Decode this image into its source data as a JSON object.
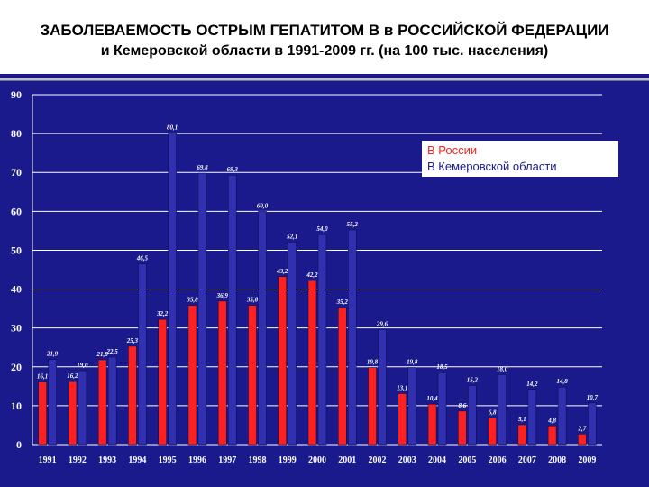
{
  "title": {
    "line1": "ЗАБОЛЕВАЕМОСТЬ ОСТРЫМ ГЕПАТИТОМ В в РОССИЙСКОЙ ФЕДЕРАЦИИ",
    "line2": "и Кемеровской области в 1991-2009 гг. (на 100 тыс. населения)"
  },
  "colors": {
    "plot_background": "#1a1a8c",
    "russia": "#ff2020",
    "kemerovo": "#3030b0",
    "text": "#ffffff"
  },
  "chart_data": {
    "type": "bar",
    "categories": [
      "1991",
      "1992",
      "1993",
      "1994",
      "1995",
      "1996",
      "1997",
      "1998",
      "1999",
      "2000",
      "2001",
      "2002",
      "2003",
      "2004",
      "2005",
      "2006",
      "2007",
      "2008",
      "2009"
    ],
    "series": [
      {
        "name": "В России",
        "color": "#ff2020",
        "values": [
          16.1,
          16.2,
          21.8,
          25.3,
          32.2,
          35.8,
          36.9,
          35.8,
          43.2,
          42.2,
          35.2,
          19.8,
          13.1,
          10.4,
          8.6,
          6.8,
          5.1,
          4.8,
          2.7
        ]
      },
      {
        "name": "В Кемеровской области",
        "color": "#3030b0",
        "values": [
          21.9,
          19.0,
          22.5,
          46.5,
          80.1,
          69.8,
          69.3,
          60.0,
          52.1,
          54.0,
          55.2,
          29.6,
          19.8,
          18.5,
          15.2,
          18.0,
          14.2,
          14.8,
          10.7
        ]
      }
    ],
    "data_labels": [
      [
        "16,1",
        "16,2",
        "21,8",
        "25,3",
        "32,2",
        "35,8",
        "36,9",
        "35,8",
        "43,2",
        "42,2",
        "35,2",
        "19,8",
        "13,1",
        "10,4",
        "8,6",
        "6,8",
        "5,1",
        "4,8",
        "2,7"
      ],
      [
        "21,9",
        "19,0",
        "22,5",
        "46,5",
        "80,1",
        "69,8",
        "69,3",
        "60,0",
        "52,1",
        "54,0",
        "55,2",
        "29,6",
        "19,8",
        "18,5",
        "15,2",
        "18,0",
        "14,2",
        "14,8",
        "10,7"
      ]
    ],
    "yticks": [
      0,
      10,
      20,
      30,
      40,
      50,
      60,
      70,
      80,
      90
    ],
    "ylim": [
      0,
      90
    ],
    "grid": true,
    "legend_position": "top-right"
  }
}
